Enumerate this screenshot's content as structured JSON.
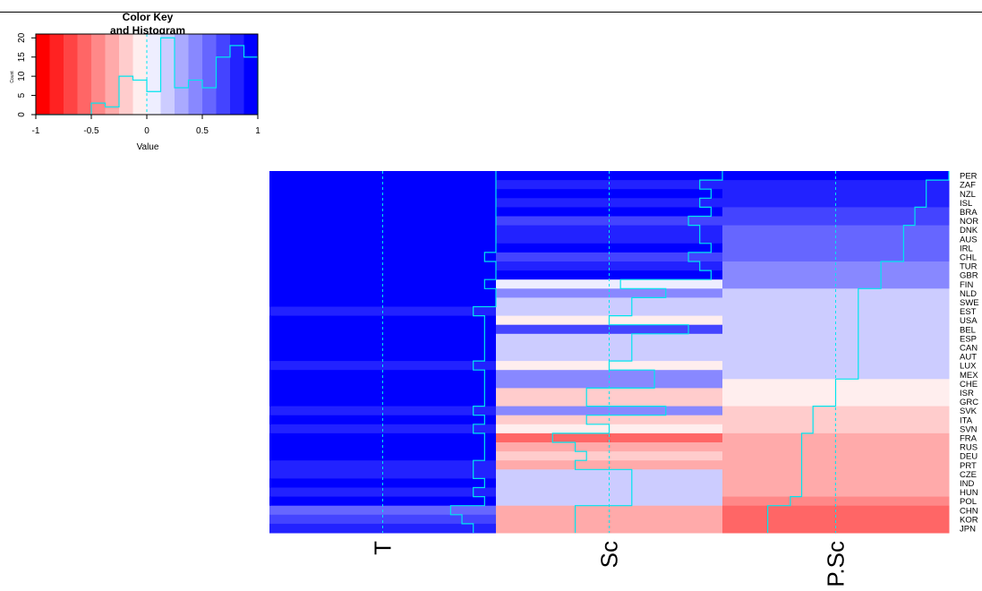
{
  "chart_data": {
    "type": "heatmap",
    "color_key": {
      "title_line1": "Color Key",
      "title_line2": "and Histogram",
      "xlabel": "Value",
      "ylabel": "Count",
      "x_ticks": [
        "-1",
        "-0.5",
        "0",
        "0.5",
        "1"
      ],
      "y_ticks": [
        "0",
        "5",
        "10",
        "15",
        "20"
      ],
      "xlim": [
        -1,
        1
      ],
      "ylim": [
        0,
        21
      ],
      "breaks": [
        -1,
        -0.875,
        -0.75,
        -0.625,
        -0.5,
        -0.375,
        -0.25,
        -0.125,
        0,
        0.125,
        0.25,
        0.375,
        0.5,
        0.625,
        0.75,
        0.875,
        1
      ],
      "colors": [
        "#ff0000",
        "#ff2222",
        "#ff4444",
        "#ff6666",
        "#ff8888",
        "#ffaaaa",
        "#ffcccc",
        "#ffeeee",
        "#eeeeff",
        "#ccccff",
        "#aaaaff",
        "#8888ff",
        "#6666ff",
        "#4444ff",
        "#2222ff",
        "#0000ff"
      ],
      "hist_counts": [
        0,
        0,
        0,
        0,
        3,
        2,
        10,
        9,
        6,
        20,
        7,
        9,
        7,
        15,
        18,
        15
      ],
      "line_color": "#00e5ee"
    },
    "columns": [
      "T",
      "Sc",
      "P.Sc"
    ],
    "rows": [
      "PER",
      "ZAF",
      "NZL",
      "ISL",
      "BRA",
      "NOR",
      "DNK",
      "AUS",
      "IRL",
      "CHL",
      "TUR",
      "GBR",
      "FIN",
      "NLD",
      "SWE",
      "EST",
      "USA",
      "BEL",
      "ESP",
      "CAN",
      "AUT",
      "LUX",
      "MEX",
      "CHE",
      "ISR",
      "GRC",
      "SVK",
      "ITA",
      "SVN",
      "FRA",
      "RUS",
      "DEU",
      "PRT",
      "CZE",
      "IND",
      "HUN",
      "POL",
      "CHN",
      "KOR",
      "JPN"
    ],
    "series": [
      {
        "name": "T",
        "values": [
          1,
          1,
          1,
          1,
          1,
          1,
          1,
          1,
          1,
          0.9,
          1,
          1,
          0.9,
          1,
          1,
          0.8,
          0.9,
          0.9,
          0.9,
          0.9,
          0.9,
          0.8,
          0.9,
          0.9,
          0.9,
          0.9,
          0.8,
          0.9,
          0.8,
          0.9,
          0.9,
          0.9,
          0.8,
          0.8,
          0.9,
          0.8,
          0.9,
          0.6,
          0.7,
          0.8
        ]
      },
      {
        "name": "Sc",
        "values": [
          1,
          0.8,
          0.9,
          0.8,
          0.9,
          0.7,
          0.8,
          0.8,
          0.9,
          0.7,
          0.8,
          0.9,
          0.1,
          0.5,
          0.2,
          0.2,
          0,
          0.7,
          0.2,
          0.2,
          0.2,
          0,
          0.4,
          0.4,
          -0.2,
          -0.2,
          0.5,
          -0.2,
          0,
          -0.5,
          -0.3,
          -0.2,
          -0.3,
          0.2,
          0.2,
          0.2,
          0.2,
          -0.3,
          -0.3,
          -0.3
        ]
      },
      {
        "name": "P.Sc",
        "values": [
          1,
          0.8,
          0.8,
          0.8,
          0.7,
          0.7,
          0.6,
          0.6,
          0.6,
          0.6,
          0.4,
          0.4,
          0.4,
          0.2,
          0.2,
          0.2,
          0.2,
          0.2,
          0.2,
          0.2,
          0.2,
          0.2,
          0.2,
          0,
          0,
          0,
          -0.2,
          -0.2,
          -0.2,
          -0.3,
          -0.3,
          -0.3,
          -0.3,
          -0.3,
          -0.3,
          -0.3,
          -0.4,
          -0.6,
          -0.6,
          -0.6
        ]
      }
    ],
    "trace": "column",
    "trace_color": "#00e5ee",
    "grid": false
  }
}
